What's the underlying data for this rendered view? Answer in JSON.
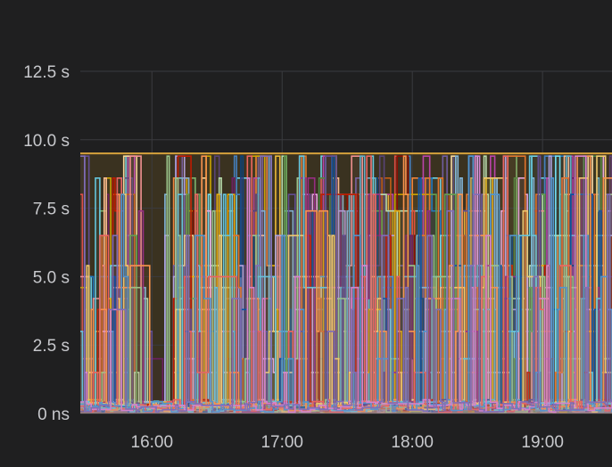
{
  "chart_data": {
    "type": "line",
    "title": "",
    "xlabel": "",
    "ylabel": "",
    "grid": true,
    "legend": "none",
    "x_ticks": [
      "16:00",
      "17:00",
      "18:00",
      "19:00"
    ],
    "x_tick_minutes": [
      960,
      1020,
      1080,
      1140
    ],
    "x_range_minutes": [
      927,
      1172
    ],
    "y_ticks": [
      "0 ns",
      "2.5 s",
      "5.0 s",
      "7.5 s",
      "10.0 s",
      "12.5 s"
    ],
    "y_tick_values_s": [
      0,
      2.5,
      5.0,
      7.5,
      10.0,
      12.5
    ],
    "ylim": [
      0,
      12.5
    ],
    "step_minutes": 1,
    "series_count": 40,
    "threshold": {
      "value_s": 9.5,
      "color": "#d6a23c",
      "fill": "#3a3220"
    },
    "series_colors": [
      "#7eb26d",
      "#eab839",
      "#6ed0e0",
      "#ef843c",
      "#e24d42",
      "#1f78c1",
      "#ba43a9",
      "#705da0",
      "#508642",
      "#cca300",
      "#447ebc",
      "#c15c17",
      "#890f02",
      "#0a437c",
      "#6d1f62",
      "#584477",
      "#b7dbab",
      "#f4d598",
      "#70dbed",
      "#f9ba8f",
      "#f29191",
      "#82b5d8",
      "#e5a8e2",
      "#aea2e0",
      "#629e51",
      "#e5ac0e",
      "#64b0c8",
      "#e0752d",
      "#bf1b00",
      "#0a50a1",
      "#962d82",
      "#614d93",
      "#9ac48a",
      "#f2c96d",
      "#65c5db",
      "#f9934e",
      "#ea6460",
      "#5195ce",
      "#d683ce",
      "#806eb7"
    ]
  }
}
